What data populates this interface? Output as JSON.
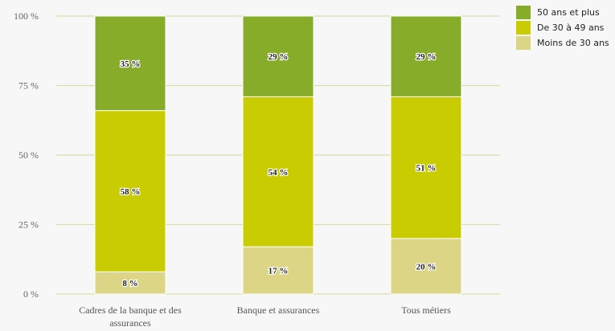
{
  "chart_data": {
    "type": "bar",
    "stacked": true,
    "categories": [
      "Cadres de la banque et des assurances",
      "Banque et assurances",
      "Tous métiers"
    ],
    "series": [
      {
        "name": "Moins de 30 ans",
        "values": [
          8,
          17,
          20
        ],
        "labels": [
          "8 %",
          "17 %",
          "20 %"
        ],
        "color": "#dcd585"
      },
      {
        "name": "De 30 à 49 ans",
        "values": [
          58,
          54,
          51
        ],
        "labels": [
          "58 %",
          "54 %",
          "51 %"
        ],
        "color": "#c8cc00"
      },
      {
        "name": "50 ans et plus",
        "values": [
          35,
          29,
          29
        ],
        "labels": [
          "35 %",
          "29 %",
          "29 %"
        ],
        "color": "#86ac2a"
      }
    ],
    "yticks": [
      "0 %",
      "25 %",
      "50 %",
      "75 %",
      "100 %"
    ],
    "ylim": [
      0,
      100
    ],
    "grid": true,
    "gridColor": "#d7e0a8",
    "legend": "top-right",
    "legend_order": [
      "50 ans et plus",
      "De 30 à 49 ans",
      "Moins de 30 ans"
    ]
  }
}
